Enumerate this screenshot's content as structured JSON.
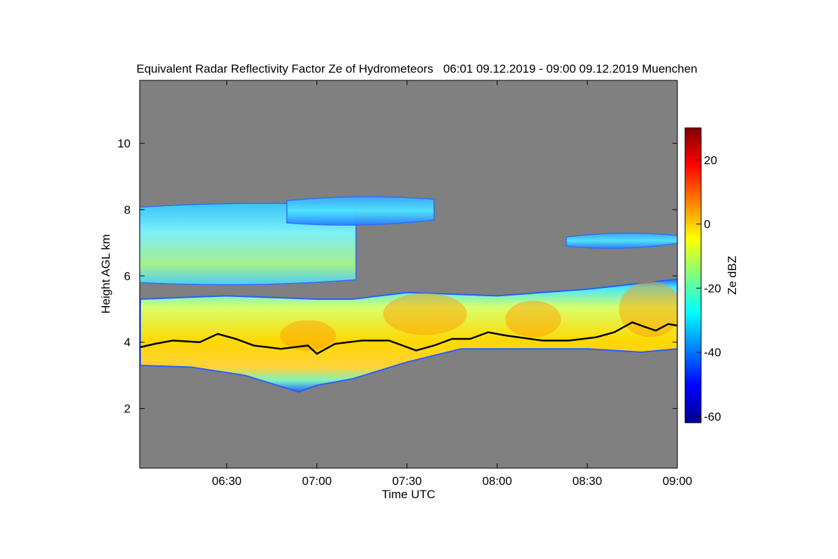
{
  "chart_data": {
    "type": "heatmap",
    "title": "Equivalent Radar Reflectivity Factor Ze of Hydrometeors   06:01 09.12.2019 - 09:00 09.12.2019 Muenchen",
    "xlabel": "Time UTC",
    "ylabel": "Height AGL km",
    "x_range": [
      "06:01",
      "09:00"
    ],
    "x_ticks": [
      "06:30",
      "07:00",
      "07:30",
      "08:00",
      "08:30",
      "09:00"
    ],
    "ylim": [
      0.2,
      11.9
    ],
    "y_ticks": [
      2,
      4,
      6,
      8,
      10
    ],
    "background_color": "#808080",
    "colorbar": {
      "label": "Ze dBZ",
      "range": [
        -62,
        30
      ],
      "ticks": [
        20,
        0,
        -20,
        -40,
        -60
      ],
      "colormap": "jet"
    },
    "cloud_layers": [
      {
        "name": "upper layer",
        "segments": [
          {
            "t_start": "06:01",
            "t_end": "07:13",
            "base_km": 5.8,
            "top_km": 8.2,
            "peak_dBZ": -15,
            "edge_dBZ": -45
          },
          {
            "t_start": "06:50",
            "t_end": "07:39",
            "base_km": 7.6,
            "top_km": 8.4,
            "peak_dBZ": -32,
            "edge_dBZ": -45
          },
          {
            "t_start": "08:23",
            "t_end": "09:00",
            "base_km": 6.9,
            "top_km": 7.3,
            "peak_dBZ": -30,
            "edge_dBZ": -42
          }
        ]
      },
      {
        "name": "lower layer",
        "base_profile_km": [
          [
            6.02,
            3.3
          ],
          [
            6.3,
            3.25
          ],
          [
            6.6,
            3.0
          ],
          [
            6.9,
            2.5
          ],
          [
            7.0,
            2.7
          ],
          [
            7.2,
            2.9
          ],
          [
            7.5,
            3.4
          ],
          [
            7.8,
            3.8
          ],
          [
            8.0,
            3.8
          ],
          [
            8.5,
            3.8
          ],
          [
            8.8,
            3.7
          ],
          [
            9.0,
            3.8
          ]
        ],
        "top_profile_km": [
          [
            6.02,
            5.3
          ],
          [
            6.5,
            5.4
          ],
          [
            7.0,
            5.3
          ],
          [
            7.2,
            5.3
          ],
          [
            7.5,
            5.5
          ],
          [
            8.0,
            5.4
          ],
          [
            8.5,
            5.6
          ],
          [
            9.0,
            5.9
          ]
        ],
        "peak_dBZ": 8,
        "edge_dBZ": -45
      }
    ],
    "melting_layer_line": {
      "color": "#000000",
      "points": [
        [
          6.02,
          3.85
        ],
        [
          6.1,
          3.95
        ],
        [
          6.2,
          4.05
        ],
        [
          6.35,
          4.0
        ],
        [
          6.45,
          4.25
        ],
        [
          6.55,
          4.1
        ],
        [
          6.65,
          3.9
        ],
        [
          6.8,
          3.8
        ],
        [
          6.95,
          3.9
        ],
        [
          7.0,
          3.65
        ],
        [
          7.1,
          3.95
        ],
        [
          7.25,
          4.05
        ],
        [
          7.4,
          4.05
        ],
        [
          7.55,
          3.75
        ],
        [
          7.65,
          3.9
        ],
        [
          7.75,
          4.1
        ],
        [
          7.85,
          4.1
        ],
        [
          7.95,
          4.3
        ],
        [
          8.05,
          4.2
        ],
        [
          8.25,
          4.05
        ],
        [
          8.4,
          4.05
        ],
        [
          8.55,
          4.15
        ],
        [
          8.65,
          4.3
        ],
        [
          8.75,
          4.6
        ],
        [
          8.8,
          4.5
        ],
        [
          8.88,
          4.35
        ],
        [
          8.95,
          4.55
        ],
        [
          9.0,
          4.5
        ]
      ]
    }
  }
}
